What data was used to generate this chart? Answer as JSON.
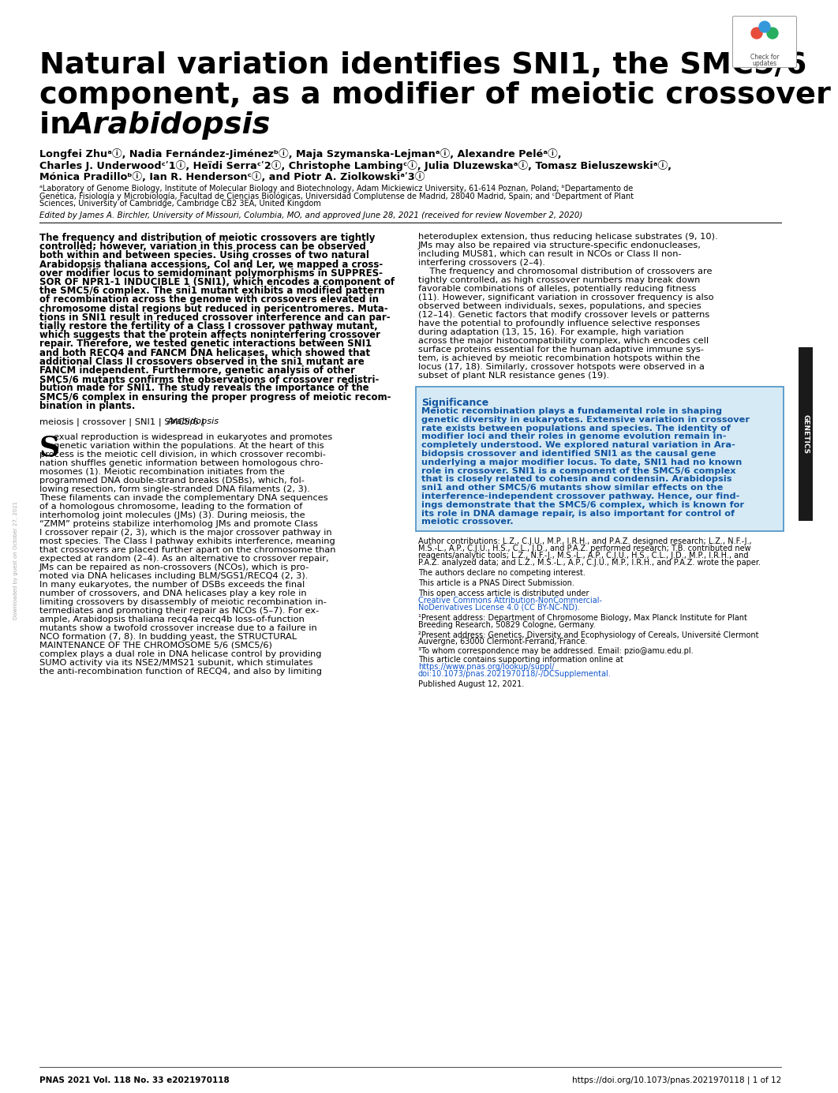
{
  "title_line1": "Natural variation identifies SNI1, the SMC5/6",
  "title_line2": "component, as a modifier of meiotic crossover",
  "title_line3_normal": "in ",
  "title_line3_italic": "Arabidopsis",
  "authors1": "Longfei Zhuᵃⓘ, Nadia Fernández-Jiménezᵇⓘ, Maja Szymanska-Lejmanᵃⓘ, Alexandre Peléᵃⓘ,",
  "authors2": "Charles J. Underwoodᶜʹ1ⓘ, Heïdi Serraᶜʹ2ⓘ, Christophe Lambingᶜⓘ, Julia Dluzewskaᵃⓘ, Tomasz Bieluszewskiᵃⓘ,",
  "authors3": "Mónica Pradilloᵇⓘ, Ian R. Hendersonᶜⓘ, and Piotr A. Ziolkowskiᵃʹ3ⓘ",
  "aff1": "ᵃLaboratory of Genome Biology, Institute of Molecular Biology and Biotechnology, Adam Mickiewicz University, 61-614 Poznan, Poland; ᵇDepartamento de",
  "aff2": "Genética, Fisiología y Microbiología, Facultad de Ciencias Biológicas, Universidad Complutense de Madrid, 28040 Madrid, Spain; and ᶜDepartment of Plant",
  "aff3": "Sciences, University of Cambridge, Cambridge CB2 3EA, United Kingdom",
  "edited": "Edited by James A. Birchler, University of Missouri, Columbia, MO, and approved June 28, 2021 (received for review November 2, 2020)",
  "abs_left": [
    "The frequency and distribution of meiotic crossovers are tightly",
    "controlled; however, variation in this process can be observed",
    "both within and between species. Using crosses of two natural",
    "Arabidopsis thaliana accessions, Col and Ler, we mapped a cross-",
    "over modifier locus to semidominant polymorphisms in SUPPRES-",
    "SOR OF NPR1-1 INDUCIBLE 1 (SNI1), which encodes a component of",
    "the SMC5/6 complex. The sni1 mutant exhibits a modified pattern",
    "of recombination across the genome with crossovers elevated in",
    "chromosome distal regions but reduced in pericentromeres. Muta-",
    "tions in SNI1 result in reduced crossover interference and can par-",
    "tially restore the fertility of a Class I crossover pathway mutant,",
    "which suggests that the protein affects noninterfering crossover",
    "repair. Therefore, we tested genetic interactions between SNI1",
    "and both RECQ4 and FANCM DNA helicases, which showed that",
    "additional Class II crossovers observed in the sni1 mutant are",
    "FANCM independent. Furthermore, genetic analysis of other",
    "SMC5/6 mutants confirms the observations of crossover redistri-",
    "bution made for SNI1. The study reveals the importance of the",
    "SMC5/6 complex in ensuring the proper progress of meiotic recom-",
    "bination in plants."
  ],
  "keywords_normal": "meiosis | crossover | SNI1 | SMC5/6 | ",
  "keywords_italic": "Arabidopsis",
  "abs_right": [
    "heteroduplex extension, thus reducing helicase substrates (9, 10).",
    "JMs may also be repaired via structure-specific endonucleases,",
    "including MUS81, which can result in NCOs or Class II non-",
    "interfering crossovers (2–4).",
    "    The frequency and chromosomal distribution of crossovers are",
    "tightly controlled, as high crossover numbers may break down",
    "favorable combinations of alleles, potentially reducing fitness",
    "(11). However, significant variation in crossover frequency is also",
    "observed between individuals, sexes, populations, and species",
    "(12–14). Genetic factors that modify crossover levels or patterns",
    "have the potential to profoundly influence selective responses",
    "during adaptation (13, 15, 16). For example, high variation",
    "across the major histocompatibility complex, which encodes cell",
    "surface proteins essential for the human adaptive immune sys-",
    "tem, is achieved by meiotic recombination hotspots within the",
    "locus (17, 18). Similarly, crossover hotspots were observed in a",
    "subset of plant NLR resistance genes (19)."
  ],
  "sig_title": "Significance",
  "sig_lines": [
    "Meiotic recombination plays a fundamental role in shaping",
    "genetic diversity in eukaryotes. Extensive variation in crossover",
    "rate exists between populations and species. The identity of",
    "modifier loci and their roles in genome evolution remain in-",
    "completely understood. We explored natural variation in Ara-",
    "bidopsis crossover and identified SNI1 as the causal gene",
    "underlying a major modifier locus. To date, SNI1 had no known",
    "role in crossover. SNI1 is a component of the SMC5/6 complex",
    "that is closely related to cohesin and condensin. Arabidopsis",
    "sni1 and other SMC5/6 mutants show similar effects on the",
    "interference-independent crossover pathway. Hence, our find-",
    "ings demonstrate that the SMC5/6 complex, which is known for",
    "its role in DNA damage repair, is also important for control of",
    "meiotic crossover."
  ],
  "body_left": [
    "exual reproduction is widespread in eukaryotes and promotes",
    "genetic variation within the populations. At the heart of this",
    "process is the meiotic cell division, in which crossover recombi-",
    "nation shuffles genetic information between homologous chro-",
    "mosomes (1). Meiotic recombination initiates from the",
    "programmed DNA double-strand breaks (DSBs), which, fol-",
    "lowing resection, form single-stranded DNA filaments (2, 3).",
    "These filaments can invade the complementary DNA sequences",
    "of a homologous chromosome, leading to the formation of",
    "interhomolog joint molecules (JMs) (3). During meiosis, the",
    "“ZMM” proteins stabilize interhomolog JMs and promote Class",
    "I crossover repair (2, 3), which is the major crossover pathway in",
    "most species. The Class I pathway exhibits interference, meaning",
    "that crossovers are placed further apart on the chromosome than",
    "expected at random (2–4). As an alternative to crossover repair,",
    "JMs can be repaired as non-crossovers (NCOs), which is pro-",
    "moted via DNA helicases including BLM/SGS1/RECQ4 (2, 3).",
    "In many eukaryotes, the number of DSBs exceeds the final",
    "number of crossovers, and DNA helicases play a key role in",
    "limiting crossovers by disassembly of meiotic recombination in-",
    "termediates and promoting their repair as NCOs (5–7). For ex-",
    "ample, Arabidopsis thaliana recq4a recq4b loss-of-function",
    "mutants show a twofold crossover increase due to a failure in",
    "NCO formation (7, 8). In budding yeast, the STRUCTURAL",
    "MAINTENANCE OF THE CHROMOSOME 5/6 (SMC5/6)",
    "complex plays a dual role in DNA helicase control by providing",
    "SUMO activity via its NSE2/MMS21 subunit, which stimulates",
    "the anti-recombination function of RECQ4, and also by limiting"
  ],
  "contrib1": "Author contributions: L.Z., C.J.U., M.P., I.R.H., and P.A.Z. designed research; L.Z., N.F.-J.,",
  "contrib2": "M.S.-L., A.P., C.J.U., H.S., C.L., J.D., and P.A.Z. performed research; T.B. contributed new",
  "contrib3": "reagents/analytic tools; L.Z., N.F.-J., M.S.-L., A.P., C.J.U., H.S., C.L., J.D., M.P., I.R.H., and",
  "contrib4": "P.A.Z. analyzed data; and L.Z., M.S.-L., A.P., C.J.U., M.P., I.R.H., and P.A.Z. wrote the paper.",
  "competing": "The authors declare no competing interest.",
  "direct": "This article is a PNAS Direct Submission.",
  "oa1": "This open access article is distributed under ",
  "oa_link1": "Creative Commons Attribution-NonCommercial-",
  "oa_link2": "NoDerivatives License 4.0 (CC BY-NC-ND).",
  "addr1a": "¹Present address: Department of Chromosome Biology, Max Planck Institute for Plant",
  "addr1b": "Breeding Research, 50829 Cologne, Germany.",
  "addr2a": "²Present address: Genetics, Diversity and Ecophysiology of Cereals, Université Clermont",
  "addr2b": "Auvergne, 63000 Clermont-Ferrand, France.",
  "addr3": "³To whom correspondence may be addressed. Email: pzio@amu.edu.pl.",
  "supp1": "This article contains supporting information online at ",
  "supp_link1": "https://www.pnas.org/lookup/suppl/",
  "supp_link2": "doi:10.1073/pnas.2021970118/-/DCSupplemental.",
  "published": "Published August 12, 2021.",
  "footer_left": "PNAS 2021 Vol. 118 No. 33 e2021970118",
  "footer_right": "https://doi.org/10.1073/pnas.2021970118 | 1 of 12",
  "genetics_label": "GENETICS",
  "watermark": "Downloaded by guest on October 27, 2021",
  "sig_bg": "#d6eaf5",
  "sig_border": "#4a90c4",
  "sig_text_color": "#1155a0",
  "link_color": "#1155cc",
  "sidebar_color": "#1a1a1a"
}
